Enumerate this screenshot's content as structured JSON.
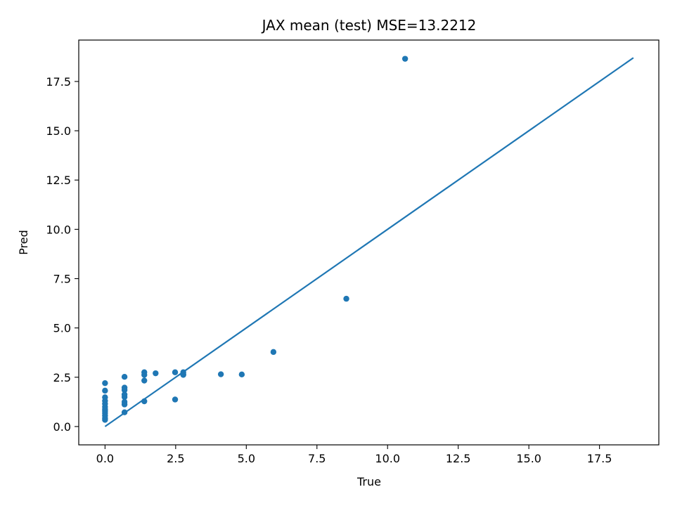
{
  "chart_data": {
    "type": "scatter",
    "title": "JAX mean (test) MSE=13.2212",
    "xlabel": "True",
    "ylabel": "Pred",
    "xlim": [
      -0.93,
      19.6
    ],
    "ylim": [
      -0.93,
      19.6
    ],
    "xticks": [
      0.0,
      2.5,
      5.0,
      7.5,
      10.0,
      12.5,
      15.0,
      17.5
    ],
    "yticks": [
      0.0,
      2.5,
      5.0,
      7.5,
      10.0,
      12.5,
      15.0,
      17.5
    ],
    "xtick_labels": [
      "0.0",
      "2.5",
      "5.0",
      "7.5",
      "10.0",
      "12.5",
      "15.0",
      "17.5"
    ],
    "ytick_labels": [
      "0.0",
      "2.5",
      "5.0",
      "7.5",
      "10.0",
      "12.5",
      "15.0",
      "17.5"
    ],
    "grid": false,
    "color": "#1f77b4",
    "reference_line": {
      "x": [
        0.0,
        18.7
      ],
      "y": [
        0.0,
        18.7
      ]
    },
    "points": [
      {
        "x": 0.0,
        "y": 2.2
      },
      {
        "x": 0.0,
        "y": 1.82
      },
      {
        "x": 0.0,
        "y": 1.48
      },
      {
        "x": 0.0,
        "y": 1.3
      },
      {
        "x": 0.0,
        "y": 1.15
      },
      {
        "x": 0.0,
        "y": 1.0
      },
      {
        "x": 0.0,
        "y": 0.88
      },
      {
        "x": 0.0,
        "y": 0.78
      },
      {
        "x": 0.0,
        "y": 0.68
      },
      {
        "x": 0.0,
        "y": 0.55
      },
      {
        "x": 0.0,
        "y": 0.42
      },
      {
        "x": 0.0,
        "y": 0.34
      },
      {
        "x": 0.69,
        "y": 2.52
      },
      {
        "x": 0.69,
        "y": 1.97
      },
      {
        "x": 0.69,
        "y": 1.85
      },
      {
        "x": 0.69,
        "y": 1.62
      },
      {
        "x": 0.69,
        "y": 1.5
      },
      {
        "x": 0.69,
        "y": 1.25
      },
      {
        "x": 0.69,
        "y": 1.12
      },
      {
        "x": 0.69,
        "y": 0.72
      },
      {
        "x": 1.39,
        "y": 2.75
      },
      {
        "x": 1.39,
        "y": 2.62
      },
      {
        "x": 1.39,
        "y": 2.33
      },
      {
        "x": 1.39,
        "y": 1.28
      },
      {
        "x": 1.79,
        "y": 2.7
      },
      {
        "x": 2.48,
        "y": 2.75
      },
      {
        "x": 2.48,
        "y": 1.37
      },
      {
        "x": 2.77,
        "y": 2.75
      },
      {
        "x": 2.77,
        "y": 2.65
      },
      {
        "x": 2.77,
        "y": 2.62
      },
      {
        "x": 4.1,
        "y": 2.65
      },
      {
        "x": 4.84,
        "y": 2.64
      },
      {
        "x": 5.96,
        "y": 3.78
      },
      {
        "x": 8.54,
        "y": 6.48
      },
      {
        "x": 10.62,
        "y": 18.65
      }
    ]
  }
}
